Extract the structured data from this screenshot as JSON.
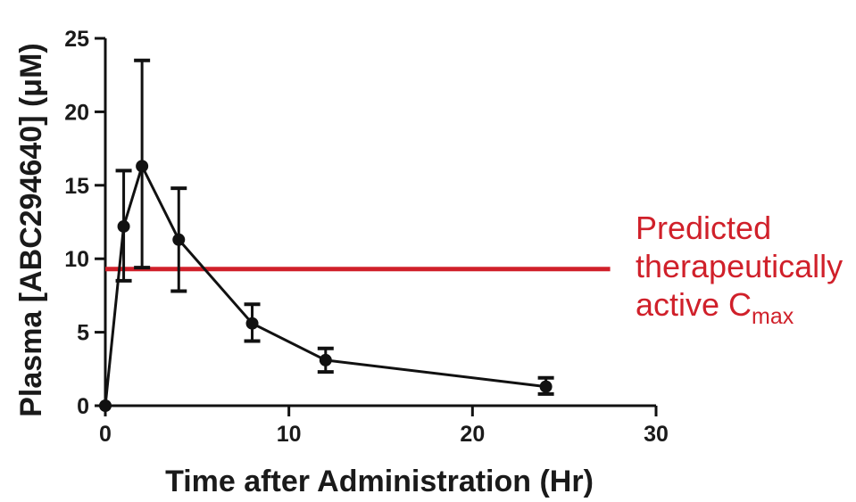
{
  "chart_data": {
    "type": "line",
    "xlabel": "Time after Administration (Hr)",
    "ylabel": "Plasma [ABC294640] (μM)",
    "xlim": [
      0,
      30
    ],
    "ylim": [
      0,
      25
    ],
    "x_ticks": [
      "0",
      "10",
      "20",
      "30"
    ],
    "y_ticks": [
      "0",
      "5",
      "10",
      "15",
      "20",
      "25"
    ],
    "grid": false,
    "series": [
      {
        "x": [
          0,
          1,
          2,
          4,
          8,
          12,
          24
        ],
        "y": [
          0,
          12.2,
          16.3,
          11.3,
          5.6,
          3.1,
          1.3
        ],
        "error_high": [
          0,
          16.0,
          23.5,
          14.8,
          6.9,
          3.9,
          1.9
        ],
        "error_low": [
          0,
          8.5,
          9.4,
          7.8,
          4.4,
          2.3,
          0.8
        ],
        "color": "#111111"
      }
    ],
    "reference_line": {
      "y": 9.3,
      "x_range": [
        0,
        27.5
      ],
      "color": "#d0202a",
      "label_lines": [
        "Predicted",
        "therapeutically",
        "active C"
      ],
      "label_subscript": "max"
    }
  }
}
